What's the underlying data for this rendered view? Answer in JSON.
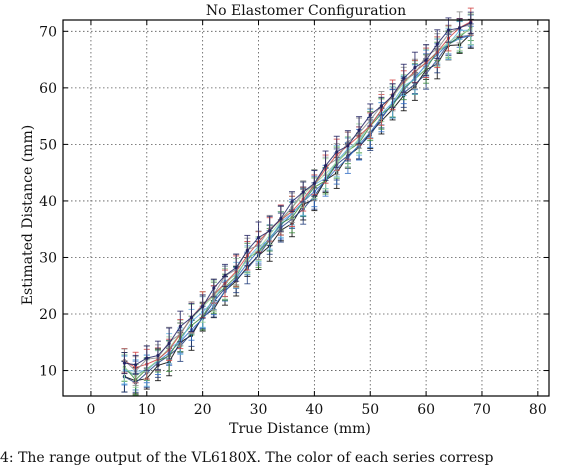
{
  "chart_data": {
    "type": "line",
    "title": "No Elastomer Configuration",
    "xlabel": "True Distance (mm)",
    "ylabel": "Estimated Distance (mm)",
    "xlim": [
      -5,
      82
    ],
    "ylim": [
      5.5,
      72
    ],
    "xticks": [
      "0",
      "10",
      "20",
      "30",
      "40",
      "50",
      "60",
      "70",
      "80"
    ],
    "yticks": [
      "10",
      "20",
      "30",
      "40",
      "50",
      "60",
      "70"
    ],
    "grid": true,
    "legend": "none",
    "series_colors": [
      "#000000",
      "#1f3b7a",
      "#2e6bc4",
      "#3a8a3a",
      "#5fb0e0",
      "#9ad29a",
      "#d04040",
      "#8a8a8a",
      "#202060"
    ],
    "x": [
      6,
      8,
      10,
      12,
      14,
      16,
      18,
      20,
      22,
      24,
      26,
      28,
      30,
      32,
      34,
      36,
      38,
      40,
      42,
      44,
      46,
      48,
      50,
      52,
      54,
      56,
      58,
      60,
      62,
      64,
      66,
      68
    ],
    "y_mean": [
      10.5,
      9.3,
      10.4,
      11.8,
      13.5,
      15.8,
      18.2,
      20.4,
      22.7,
      25.2,
      27.4,
      29.7,
      31.6,
      33.7,
      35.8,
      37.9,
      40.2,
      42.3,
      44.5,
      46.9,
      48.9,
      51.2,
      53.2,
      55.6,
      57.7,
      59.8,
      62.0,
      64.1,
      66.2,
      68.3,
      69.6,
      70.4
    ],
    "error": 2.5
  },
  "caption": "4: The range output of the VL6180X. The color of each series corresp"
}
